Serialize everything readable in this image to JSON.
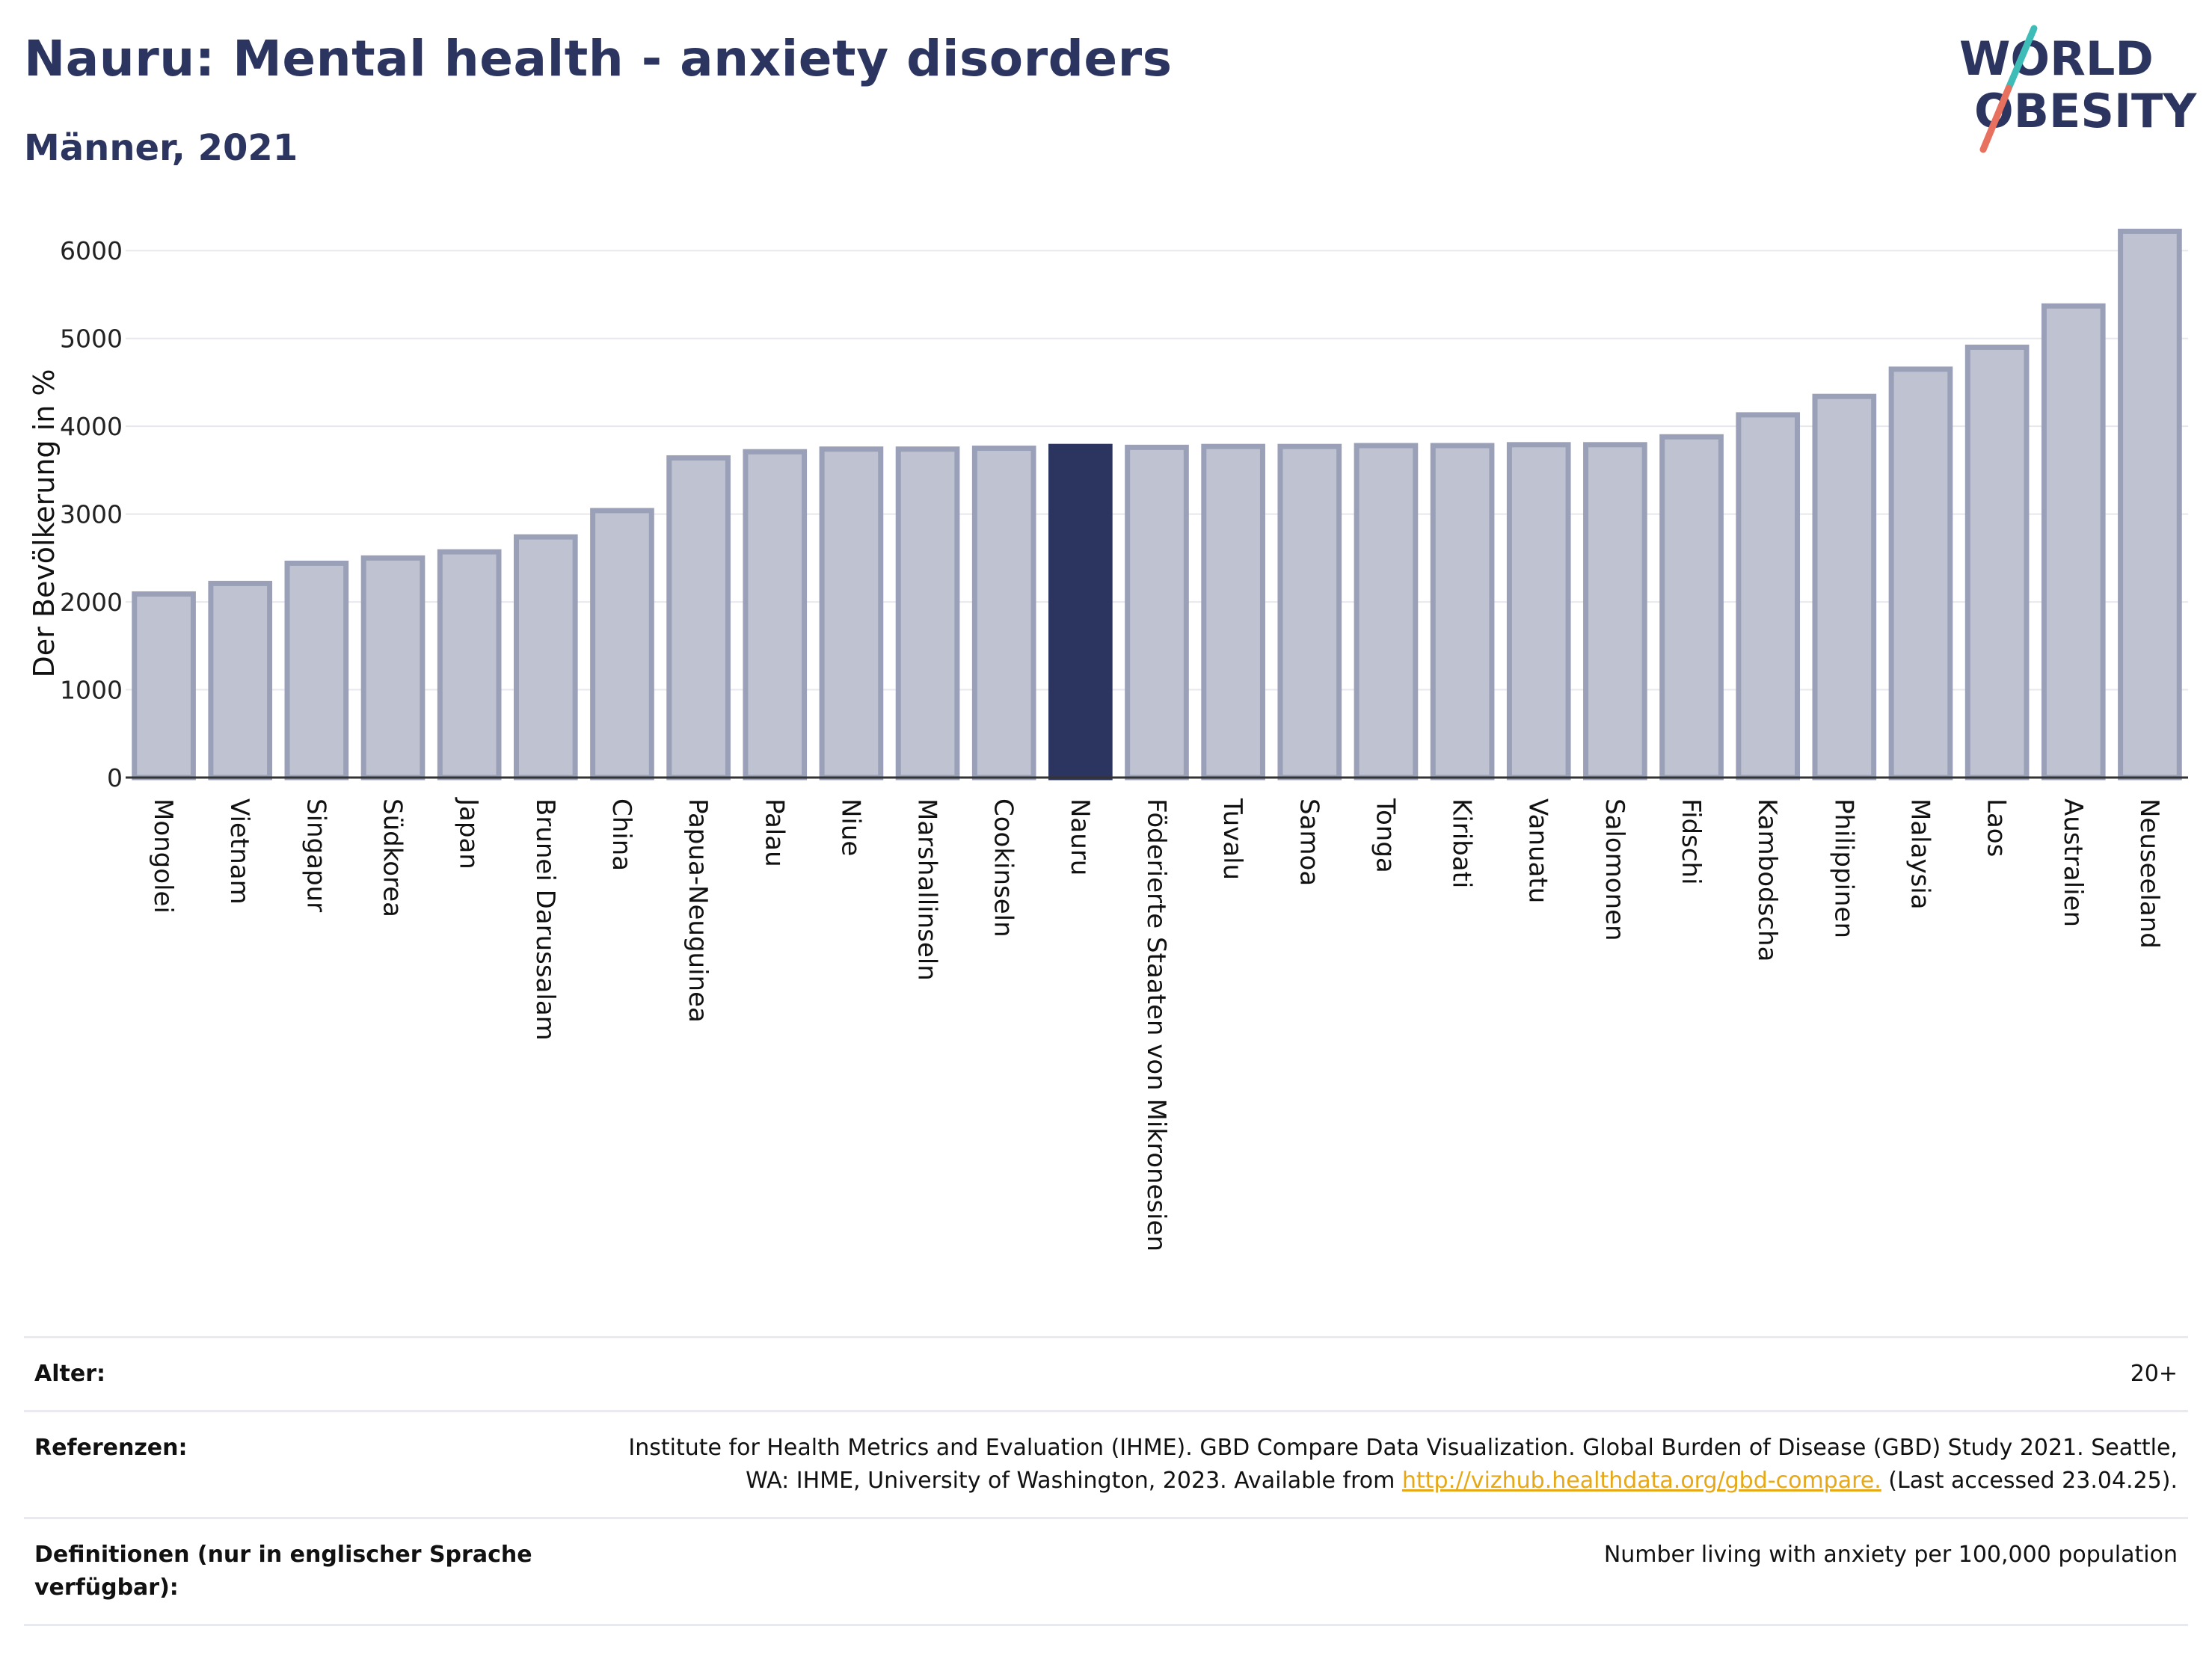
{
  "header": {
    "title": "Nauru: Mental health - anxiety disorders",
    "subtitle": "Männer, 2021"
  },
  "logo": {
    "line1": "WORLD",
    "line2": "OBESITY",
    "slash_colors": [
      "#3dbcb8",
      "#e8705f"
    ]
  },
  "colors": {
    "bar": "#bfc3d1",
    "bar_border": "#9aa0b8",
    "highlight": "#2b3560",
    "text": "#2b3560"
  },
  "chart_data": {
    "type": "bar",
    "ylabel": "Der Bevölkerung in %",
    "ylim": [
      0,
      6300
    ],
    "yticks": [
      0,
      1000,
      2000,
      3000,
      4000,
      5000,
      6000
    ],
    "grid": true,
    "highlight": "Nauru",
    "categories": [
      "Mongolei",
      "Vietnam",
      "Singapur",
      "Südkorea",
      "Japan",
      "Brunei Darussalam",
      "China",
      "Papua-Neuguinea",
      "Palau",
      "Niue",
      "Marshallinseln",
      "Cookinseln",
      "Nauru",
      "Föderierte Staaten von Mikronesien",
      "Tuvalu",
      "Samoa",
      "Tonga",
      "Kiribati",
      "Vanuatu",
      "Salomonen",
      "Fidschi",
      "Kambodscha",
      "Philippinen",
      "Malaysia",
      "Laos",
      "Australien",
      "Neuseeland"
    ],
    "values": [
      2090,
      2210,
      2440,
      2500,
      2570,
      2740,
      3040,
      3640,
      3710,
      3740,
      3740,
      3750,
      3770,
      3760,
      3770,
      3770,
      3780,
      3780,
      3790,
      3790,
      3880,
      4130,
      4340,
      4650,
      4900,
      5370,
      6220
    ]
  },
  "info": {
    "age_label": "Alter:",
    "age_value": "20+",
    "ref_label": "Referenzen:",
    "ref_text_1": "Institute for Health Metrics and Evaluation (IHME). GBD Compare Data Visualization. Global Burden of Disease (GBD) Study 2021. Seattle, WA: IHME, University of Washington, 2023. Available from ",
    "ref_link": "http://vizhub.healthdata.org/gbd-compare.",
    "ref_text_2": " (Last accessed 23.04.25).",
    "def_label": "Definitionen (nur in englischer Sprache verfügbar):",
    "def_value": "Number living with anxiety per 100,000 population"
  }
}
